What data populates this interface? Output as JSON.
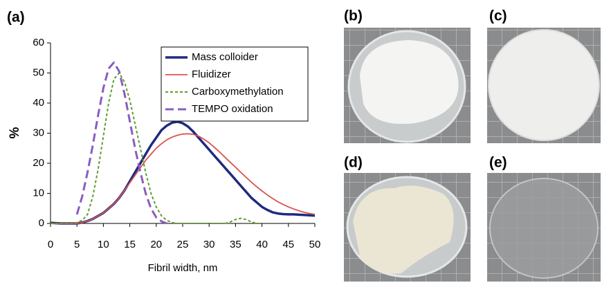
{
  "chart_data": {
    "type": "line",
    "panel_label": "(a)",
    "xlabel": "Fibril width, nm",
    "ylabel": "%",
    "x": [
      0,
      1,
      2,
      3,
      4,
      5,
      6,
      7,
      8,
      9,
      10,
      11,
      12,
      13,
      14,
      15,
      16,
      17,
      18,
      19,
      20,
      21,
      22,
      23,
      24,
      25,
      26,
      27,
      28,
      29,
      30,
      31,
      32,
      33,
      34,
      35,
      36,
      37,
      38,
      39,
      40,
      41,
      42,
      43,
      44,
      45,
      46,
      47,
      48,
      49,
      50
    ],
    "xlim": [
      0,
      50
    ],
    "xticks": [
      0,
      5,
      10,
      15,
      20,
      25,
      30,
      35,
      40,
      45,
      50
    ],
    "ylim": [
      0,
      60
    ],
    "yticks": [
      0,
      10,
      20,
      30,
      40,
      50,
      60
    ],
    "legend": "upper right",
    "series": [
      {
        "name": "Mass colloider",
        "color": "#1f2a80",
        "style": "solid",
        "width": 3.5,
        "values": [
          0.2,
          0.1,
          0,
          0,
          0,
          0,
          0.3,
          0.8,
          1.5,
          2.5,
          3.5,
          5,
          6.5,
          8.5,
          11,
          14,
          17,
          20,
          23,
          26,
          28.5,
          31,
          32.5,
          33.5,
          33.8,
          33.3,
          32.2,
          30.5,
          28.5,
          26.5,
          24.5,
          22.5,
          20.5,
          18.5,
          16.5,
          14.5,
          12.5,
          10.5,
          8.5,
          7,
          5.5,
          4.5,
          3.7,
          3.3,
          3.1,
          3,
          3,
          2.9,
          2.8,
          2.7,
          2.6
        ]
      },
      {
        "name": "Fluidizer",
        "color": "#d9534f",
        "style": "solid",
        "width": 1.8,
        "values": [
          0,
          0,
          0,
          0,
          0,
          0,
          0.3,
          0.8,
          1.5,
          2.5,
          3.5,
          5,
          6.5,
          8.5,
          11,
          13.5,
          16,
          18.5,
          21,
          23,
          25,
          26.5,
          27.8,
          28.7,
          29.3,
          29.7,
          29.8,
          29.6,
          29,
          28,
          26.8,
          25.3,
          23.7,
          22,
          20.3,
          18.7,
          17,
          15.3,
          13.7,
          12.2,
          10.8,
          9.5,
          8.3,
          7.2,
          6.3,
          5.5,
          4.8,
          4.2,
          3.7,
          3.3,
          3
        ]
      },
      {
        "name": "Carboxymethylation",
        "color": "#5f9e2f",
        "style": "dashed",
        "width": 2,
        "values": [
          0,
          0,
          0,
          0,
          0,
          0.3,
          1,
          3,
          9,
          18,
          29,
          40,
          48,
          50,
          47,
          41,
          33,
          25,
          17,
          10,
          5.5,
          2.5,
          1,
          0.3,
          0,
          0,
          0,
          0,
          0,
          0,
          0,
          0,
          0,
          0,
          0.5,
          1.3,
          1.7,
          1.3,
          0.5,
          0,
          0,
          null,
          null,
          null,
          null,
          null,
          null,
          null,
          null,
          null,
          null
        ]
      },
      {
        "name": "TEMPO oxidation",
        "color": "#8a5cc0",
        "style": "longdash",
        "width": 3,
        "values": [
          null,
          null,
          null,
          null,
          null,
          3,
          9,
          17,
          26,
          36,
          45,
          51.5,
          53.5,
          50.5,
          43,
          34,
          25,
          17,
          10,
          5,
          2,
          0.7,
          0,
          null,
          null,
          null,
          null,
          null,
          null,
          null,
          null,
          null,
          null,
          null,
          null,
          null,
          null,
          null,
          null,
          null,
          null,
          null,
          null,
          null,
          null,
          null,
          null,
          null,
          null,
          null,
          null
        ]
      }
    ]
  },
  "panels": [
    "(b)",
    "(c)",
    "(d)",
    "(e)"
  ]
}
